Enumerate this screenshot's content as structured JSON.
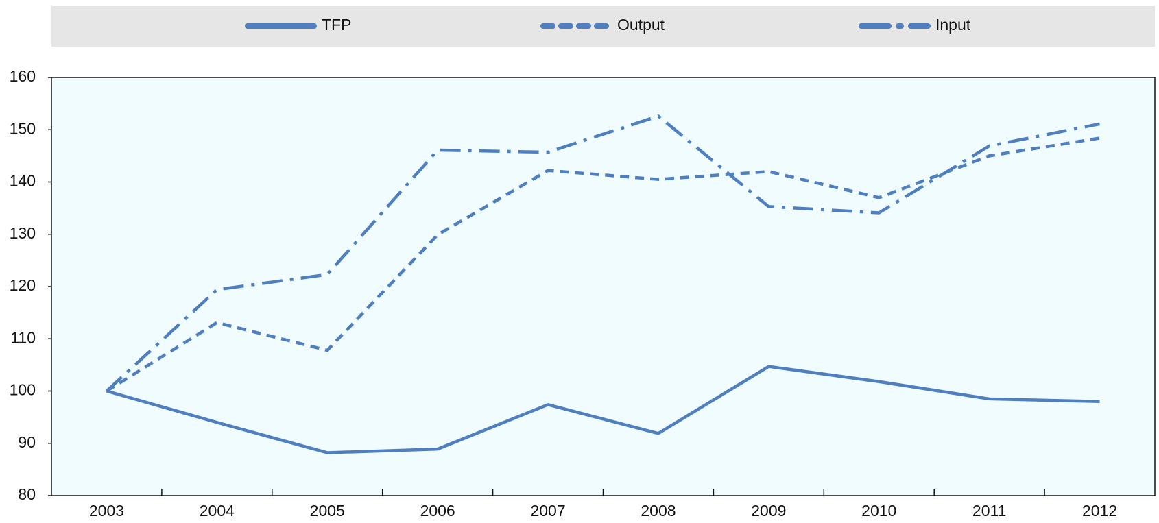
{
  "chart_data": {
    "type": "line",
    "categories": [
      "2003",
      "2004",
      "2005",
      "2006",
      "2007",
      "2008",
      "2009",
      "2010",
      "2011",
      "2012"
    ],
    "series": [
      {
        "name": "TFP",
        "color": "#4f7fbf",
        "dash": "solid",
        "values": [
          100,
          94,
          88.2,
          88.9,
          97.4,
          91.9,
          104.7,
          101.8,
          98.5,
          98
        ]
      },
      {
        "name": "Output",
        "color": "#4f7fbf",
        "dash": "dashed",
        "values": [
          100,
          113.1,
          107.8,
          129.9,
          142.2,
          140.5,
          142,
          137,
          145,
          148.4
        ]
      },
      {
        "name": "Input",
        "color": "#4f7fbf",
        "dash": "dashdot",
        "values": [
          100,
          119.4,
          122.3,
          146.1,
          145.7,
          152.6,
          135.3,
          134.1,
          146.9,
          151.1
        ]
      }
    ],
    "ylim": [
      80,
      160
    ],
    "yticks": [
      80,
      90,
      100,
      110,
      120,
      130,
      140,
      150,
      160
    ],
    "legend": "top",
    "grid": false
  }
}
